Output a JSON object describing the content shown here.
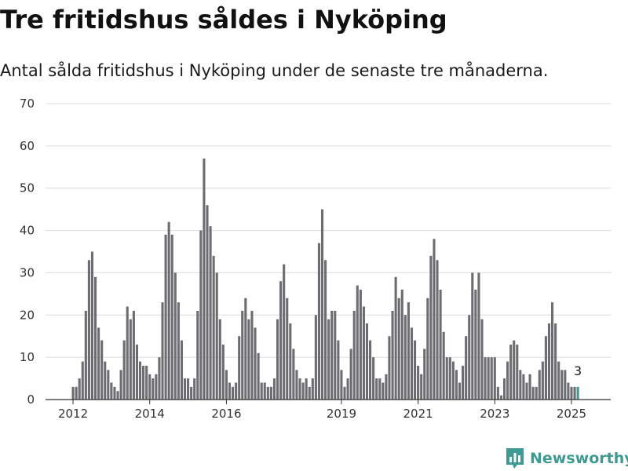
{
  "brand": {
    "name": "Newsworthy",
    "color": "#3e9a92"
  },
  "chart_data": {
    "type": "bar",
    "title": "Tre fritidshus såldes i Nyköping",
    "subtitle": "Antal sålda fritidshus i Nyköping under de senaste tre månaderna.",
    "start": "2012-01",
    "x_tick_labels": [
      "2012",
      "2014",
      "2016",
      "2019",
      "2021",
      "2023",
      "2025"
    ],
    "y_ticks": [
      0,
      10,
      20,
      30,
      40,
      50,
      60,
      70
    ],
    "ylim": [
      0,
      70
    ],
    "grid": true,
    "bar_color": "#6d6c71",
    "highlight_color": "#3e9a92",
    "last_value_label": "3",
    "values": [
      3,
      3,
      5,
      9,
      21,
      33,
      35,
      29,
      17,
      14,
      9,
      7,
      4,
      3,
      2,
      7,
      14,
      22,
      19,
      21,
      13,
      9,
      8,
      8,
      6,
      5,
      6,
      10,
      23,
      39,
      42,
      39,
      30,
      23,
      14,
      5,
      5,
      3,
      5,
      21,
      40,
      57,
      46,
      41,
      34,
      30,
      19,
      13,
      7,
      4,
      3,
      4,
      15,
      21,
      24,
      19,
      21,
      17,
      11,
      4,
      4,
      3,
      3,
      5,
      19,
      28,
      32,
      24,
      18,
      12,
      7,
      5,
      4,
      5,
      3,
      5,
      20,
      37,
      45,
      33,
      19,
      21,
      21,
      14,
      7,
      3,
      5,
      12,
      21,
      27,
      26,
      22,
      18,
      14,
      10,
      5,
      5,
      4,
      6,
      15,
      21,
      29,
      24,
      26,
      20,
      23,
      17,
      14,
      8,
      6,
      12,
      24,
      34,
      38,
      33,
      26,
      16,
      10,
      10,
      9,
      7,
      4,
      8,
      15,
      20,
      30,
      26,
      30,
      19,
      10,
      10,
      10,
      10,
      3,
      1,
      5,
      9,
      13,
      14,
      13,
      7,
      6,
      4,
      6,
      3,
      3,
      7,
      9,
      15,
      18,
      23,
      18,
      9,
      7,
      7,
      4,
      3,
      3,
      3
    ]
  }
}
